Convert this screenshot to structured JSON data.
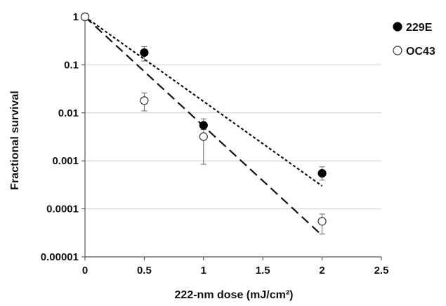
{
  "chart_data": {
    "type": "scatter",
    "xlabel": "222-nm dose (mJ/cm²)",
    "ylabel": "Fractional survival",
    "xlim": [
      0,
      2.5
    ],
    "ylim": [
      1e-05,
      1
    ],
    "yscale": "log",
    "x_ticks": [
      0,
      0.5,
      1,
      1.5,
      2,
      2.5
    ],
    "x_tick_labels": [
      "0",
      "0.5",
      "1",
      "1.5",
      "2",
      "2.5"
    ],
    "y_ticks": [
      1,
      0.1,
      0.01,
      0.001,
      0.0001,
      1e-05
    ],
    "y_tick_labels": [
      "1",
      "0.1",
      "0.01",
      "0.001",
      "0.0001",
      "0.00001"
    ],
    "grid": "horizontal",
    "legend_position": "top-right",
    "series": [
      {
        "name": "229E",
        "marker": "filled-circle",
        "color": "#000000",
        "points": [
          {
            "x": 0,
            "y": 1,
            "err_low": 1,
            "err_high": 1
          },
          {
            "x": 0.5,
            "y": 0.18,
            "err_low": 0.12,
            "err_high": 0.24
          },
          {
            "x": 1,
            "y": 0.0055,
            "err_low": 0.0045,
            "err_high": 0.0075
          },
          {
            "x": 2,
            "y": 0.00055,
            "err_low": 0.0004,
            "err_high": 0.00075
          }
        ],
        "fit": {
          "style": "dotted",
          "x": [
            0,
            2
          ],
          "y": [
            1,
            0.0003
          ]
        }
      },
      {
        "name": "OC43",
        "marker": "open-circle",
        "color": "#000000",
        "points": [
          {
            "x": 0,
            "y": 1,
            "err_low": 1,
            "err_high": 1
          },
          {
            "x": 0.5,
            "y": 0.018,
            "err_low": 0.011,
            "err_high": 0.026
          },
          {
            "x": 1,
            "y": 0.0032,
            "err_low": 0.00085,
            "err_high": 0.0045
          },
          {
            "x": 2,
            "y": 5.5e-05,
            "err_low": 3e-05,
            "err_high": 7.8e-05
          }
        ],
        "fit": {
          "style": "dashed",
          "x": [
            0,
            2
          ],
          "y": [
            1,
            2.8e-05
          ]
        }
      }
    ]
  }
}
